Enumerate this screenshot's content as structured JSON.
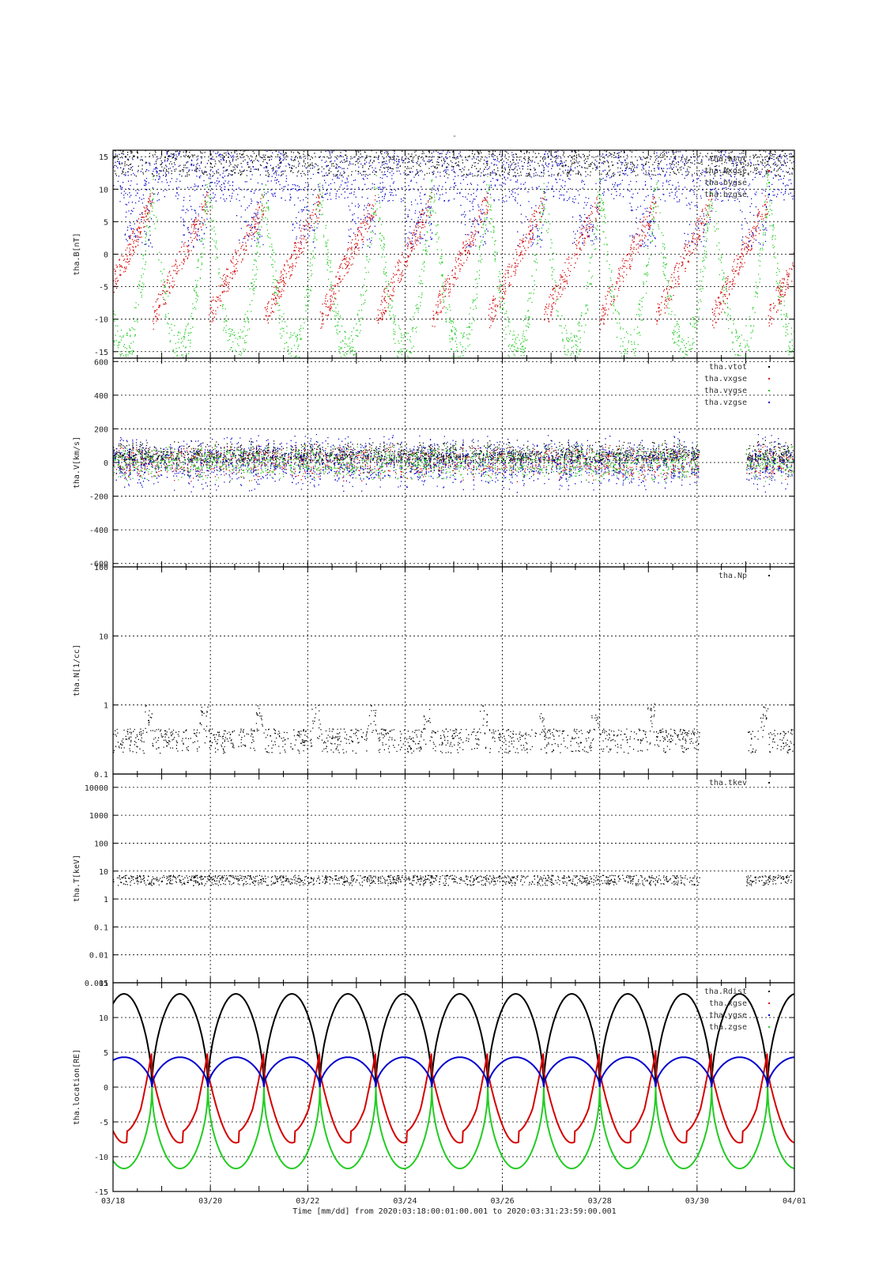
{
  "title": "-",
  "footer": "Time [mm/dd]  from 2020:03:18:00:01:00.001  to  2020:03:31:23:59:00.001",
  "x_ticks": [
    "03/18",
    "03/20",
    "03/22",
    "03/24",
    "03/26",
    "03/28",
    "03/30",
    "04/01"
  ],
  "colors": {
    "black": "#000000",
    "red": "#d40000",
    "green": "#22cc22",
    "blue": "#0000cc"
  },
  "chart_data": [
    {
      "type": "scatter",
      "ylabel": "tha.B[nT]",
      "ylim": [
        -16,
        16
      ],
      "yticks": [
        "15",
        "10",
        "5",
        "0",
        "-5",
        "-10",
        "-15"
      ],
      "ytick_values": [
        15,
        10,
        5,
        0,
        -5,
        -10,
        -15
      ],
      "legend": [
        "tha.btot",
        "tha.bxgse",
        "tha.bygse",
        "tha.bzgse"
      ],
      "legend_placement": "top-right",
      "grid": true
    },
    {
      "type": "scatter",
      "ylabel": "tha.V[km/s]",
      "ylim": [
        -620,
        620
      ],
      "yticks": [
        "600",
        "400",
        "200",
        "0",
        "-200",
        "-400",
        "-600"
      ],
      "ytick_values": [
        600,
        400,
        200,
        0,
        -200,
        -400,
        -600
      ],
      "legend": [
        "tha.vtot",
        "tha.vxgse",
        "tha.vygse",
        "tha.vzgse"
      ],
      "legend_placement": "top-right",
      "grid": true
    },
    {
      "type": "scatter",
      "ylabel": "tha.N[1/cc]",
      "ylim": [
        0.1,
        100
      ],
      "log": true,
      "yticks": [
        "100",
        "10",
        "1",
        "0.1"
      ],
      "ytick_values": [
        100,
        10,
        1,
        0.1
      ],
      "legend": [
        "tha.Np"
      ],
      "legend_placement": "top-right",
      "grid": true
    },
    {
      "type": "scatter",
      "ylabel": "tha.T[keV]",
      "ylim": [
        0.001,
        30000
      ],
      "log": true,
      "yticks": [
        "10000",
        "1000",
        "100",
        "10",
        "1",
        "0.1",
        "0.01",
        "0.001"
      ],
      "ytick_values": [
        10000,
        1000,
        100,
        10,
        1,
        0.1,
        0.01,
        0.001
      ],
      "legend": [
        "tha.tkev"
      ],
      "legend_placement": "top-right",
      "grid": true
    },
    {
      "type": "line",
      "ylabel": "tha.location[RE]",
      "ylim": [
        -15,
        15
      ],
      "yticks": [
        "15",
        "10",
        "5",
        "0",
        "-5",
        "-10",
        "-15"
      ],
      "ytick_values": [
        15,
        10,
        5,
        0,
        -5,
        -10,
        -15
      ],
      "legend": [
        "tha.Rdist",
        "tha.xgse",
        "tha.ygse",
        "tha.zgse"
      ],
      "legend_placement": "top-right",
      "grid": true,
      "x_range_days": [
        0,
        14
      ],
      "series_params": {
        "period_days": 1.15,
        "Rdist": {
          "min": 0,
          "max": 13.4
        },
        "xgse": {
          "min": -8,
          "max": 2.3
        },
        "ygse": {
          "min": 0,
          "max": 4.3
        },
        "zgse": {
          "min": -11.7,
          "max": 0
        }
      }
    }
  ]
}
